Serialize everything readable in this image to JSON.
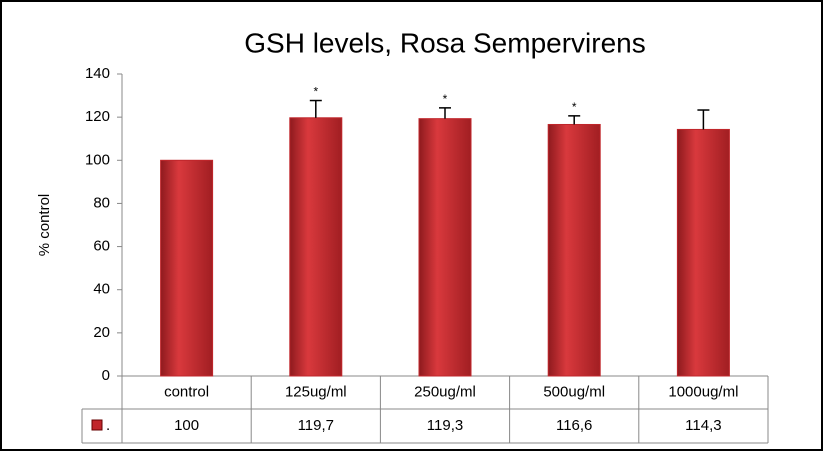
{
  "chart_data": {
    "type": "bar",
    "title": "GSH levels, Rosa Sempervirens",
    "y_label": "% control",
    "categories": [
      "control",
      "125ug/ml",
      "250ug/ml",
      "500ug/ml",
      "1000ug/ml"
    ],
    "series": [
      {
        "name": ".",
        "color": "#c0262b",
        "values": [
          100,
          119.7,
          119.3,
          116.6,
          114.3
        ],
        "value_labels": [
          "100",
          "119,7",
          "119,3",
          "116,6",
          "114,3"
        ],
        "errors": [
          null,
          8,
          5,
          4,
          9
        ]
      }
    ],
    "annotations": [
      null,
      "*",
      "*",
      "*",
      null
    ],
    "ylim": [
      0,
      140
    ],
    "yticks": [
      0,
      20,
      40,
      60,
      80,
      100,
      120,
      140
    ],
    "grid": false
  }
}
